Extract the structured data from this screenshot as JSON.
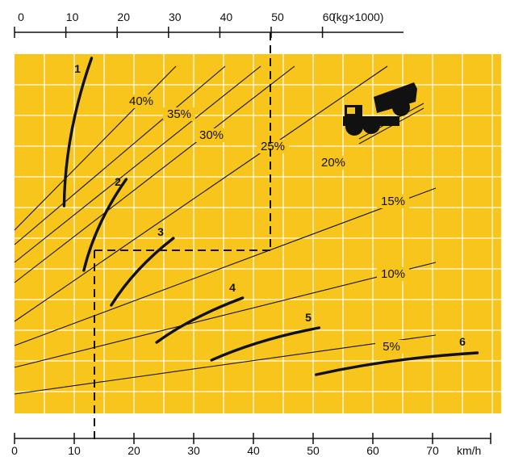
{
  "chart_data": {
    "type": "line",
    "top_axis": {
      "ticks": [
        "0",
        "10",
        "20",
        "30",
        "40",
        "50",
        "60"
      ],
      "unit_label": "(kg×1000)",
      "range": [
        0,
        60
      ]
    },
    "bottom_axis": {
      "ticks": [
        "0",
        "10",
        "20",
        "30",
        "40",
        "50",
        "60",
        "70"
      ],
      "unit_label": "km/h",
      "range": [
        0,
        80
      ]
    },
    "grid": true,
    "background_color": "#f7c51c",
    "grade_lines": [
      {
        "label": "40%"
      },
      {
        "label": "35%"
      },
      {
        "label": "30%"
      },
      {
        "label": "25%"
      },
      {
        "label": "20%"
      },
      {
        "label": "15%"
      },
      {
        "label": "10%"
      },
      {
        "label": "5%"
      }
    ],
    "gears": [
      {
        "label": "1",
        "speed_kmh": [
          8.3,
          12.9
        ]
      },
      {
        "label": "2",
        "speed_kmh": [
          11.6,
          18.7
        ]
      },
      {
        "label": "3",
        "speed_kmh": [
          16.2,
          26.6
        ]
      },
      {
        "label": "4",
        "speed_kmh": [
          23.8,
          38.2
        ]
      },
      {
        "label": "5",
        "speed_kmh": [
          33.0,
          51.0
        ]
      },
      {
        "label": "6",
        "speed_kmh": [
          50.5,
          77.5
        ]
      }
    ],
    "example": {
      "weight_kg_x1000": 50,
      "speed_kmh": 13.3
    }
  }
}
